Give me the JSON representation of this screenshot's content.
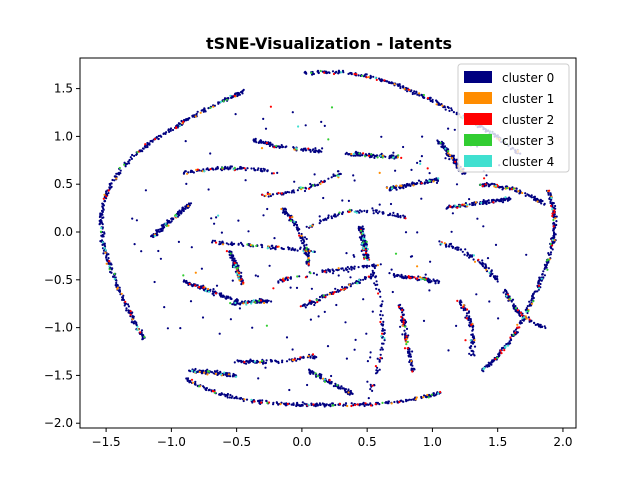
{
  "chart_data": {
    "type": "scatter",
    "title": "tSNE-Visualization - latents",
    "xlabel": "",
    "ylabel": "",
    "xlim": [
      -1.7,
      2.1
    ],
    "ylim": [
      -2.05,
      1.82
    ],
    "xticks": [
      -1.5,
      -1.0,
      -0.5,
      0.0,
      0.5,
      1.0,
      1.5,
      2.0
    ],
    "xtick_labels": [
      "−1.5",
      "−1.0",
      "−0.5",
      "0.0",
      "0.5",
      "1.0",
      "1.5",
      "2.0"
    ],
    "yticks": [
      -2.0,
      -1.5,
      -1.0,
      -0.5,
      0.0,
      0.5,
      1.0,
      1.5
    ],
    "ytick_labels": [
      "−2.0",
      "−1.5",
      "−1.0",
      "−0.5",
      "0.0",
      "0.5",
      "1.0",
      "1.5"
    ],
    "grid": false,
    "legend_position": "top-right",
    "series": [
      {
        "name": "cluster 0",
        "color": "#000080"
      },
      {
        "name": "cluster 1",
        "color": "#ff8c00"
      },
      {
        "name": "cluster 2",
        "color": "#ff0000"
      },
      {
        "name": "cluster 3",
        "color": "#32cd32"
      },
      {
        "name": "cluster 4",
        "color": "#40e0d0"
      }
    ],
    "distribution": {
      "ellipse_center": [
        0.2,
        -0.12
      ],
      "ellipse_radii": [
        1.72,
        1.74
      ],
      "ring_gaps_deg": [
        [
          18,
          32
        ],
        [
          96,
          112
        ],
        [
          215,
          232
        ],
        [
          300,
          312
        ]
      ],
      "strokes": [
        {
          "from": [
            -0.9,
            0.62
          ],
          "to": [
            -0.2,
            0.62
          ],
          "bend": 0.05
        },
        {
          "from": [
            -0.3,
            0.38
          ],
          "to": [
            0.3,
            0.62
          ],
          "bend": -0.05
        },
        {
          "from": [
            0.05,
            0.05
          ],
          "to": [
            0.8,
            0.15
          ],
          "bend": 0.12
        },
        {
          "from": [
            -0.7,
            -0.1
          ],
          "to": [
            0.1,
            -0.2
          ],
          "bend": 0.0
        },
        {
          "from": [
            -0.2,
            -0.52
          ],
          "to": [
            0.62,
            -0.35
          ],
          "bend": 0.03
        },
        {
          "from": [
            0.0,
            -0.78
          ],
          "to": [
            0.55,
            -0.45
          ],
          "bend": 0.0
        },
        {
          "from": [
            -0.15,
            0.25
          ],
          "to": [
            0.05,
            -0.35
          ],
          "bend": 0.05
        },
        {
          "from": [
            0.5,
            -0.2
          ],
          "to": [
            0.5,
            -1.82
          ],
          "bend": 0.12
        },
        {
          "from": [
            0.45,
            0.05
          ],
          "to": [
            0.5,
            -0.3
          ],
          "bend": 0.0
        },
        {
          "from": [
            0.7,
            -0.45
          ],
          "to": [
            1.05,
            -0.52
          ],
          "bend": 0.0
        },
        {
          "from": [
            1.05,
            -0.1
          ],
          "to": [
            1.5,
            -0.5
          ],
          "bend": 0.05
        },
        {
          "from": [
            1.55,
            -0.6
          ],
          "to": [
            1.85,
            -1.0
          ],
          "bend": -0.05
        },
        {
          "from": [
            1.2,
            -0.7
          ],
          "to": [
            1.3,
            -1.3
          ],
          "bend": 0.05
        },
        {
          "from": [
            0.75,
            -0.75
          ],
          "to": [
            0.85,
            -1.45
          ],
          "bend": 0.0
        },
        {
          "from": [
            -0.5,
            -1.35
          ],
          "to": [
            0.1,
            -1.3
          ],
          "bend": -0.03
        },
        {
          "from": [
            0.05,
            -1.45
          ],
          "to": [
            0.4,
            -1.7
          ],
          "bend": 0.0
        },
        {
          "from": [
            -0.55,
            -0.75
          ],
          "to": [
            -0.25,
            -0.72
          ],
          "bend": 0.0
        },
        {
          "from": [
            -0.9,
            -0.52
          ],
          "to": [
            -0.5,
            -0.72
          ],
          "bend": 0.0
        },
        {
          "from": [
            -1.15,
            -0.05
          ],
          "to": [
            -0.85,
            0.3
          ],
          "bend": 0.0
        },
        {
          "from": [
            -0.4,
            0.98
          ],
          "to": [
            0.15,
            0.85
          ],
          "bend": -0.03
        },
        {
          "from": [
            0.35,
            0.82
          ],
          "to": [
            0.75,
            0.78
          ],
          "bend": 0.0
        },
        {
          "from": [
            1.05,
            0.95
          ],
          "to": [
            1.25,
            0.6
          ],
          "bend": 0.0
        },
        {
          "from": [
            1.35,
            0.5
          ],
          "to": [
            1.85,
            0.3
          ],
          "bend": 0.05
        },
        {
          "from": [
            1.1,
            0.25
          ],
          "to": [
            1.6,
            0.35
          ],
          "bend": 0.0
        },
        {
          "from": [
            0.65,
            0.45
          ],
          "to": [
            1.05,
            0.55
          ],
          "bend": 0.0
        },
        {
          "from": [
            -0.55,
            -0.2
          ],
          "to": [
            -0.45,
            -0.55
          ],
          "bend": 0.0
        },
        {
          "from": [
            -0.85,
            -1.45
          ],
          "to": [
            -0.5,
            -1.5
          ],
          "bend": 0.0
        }
      ]
    }
  }
}
